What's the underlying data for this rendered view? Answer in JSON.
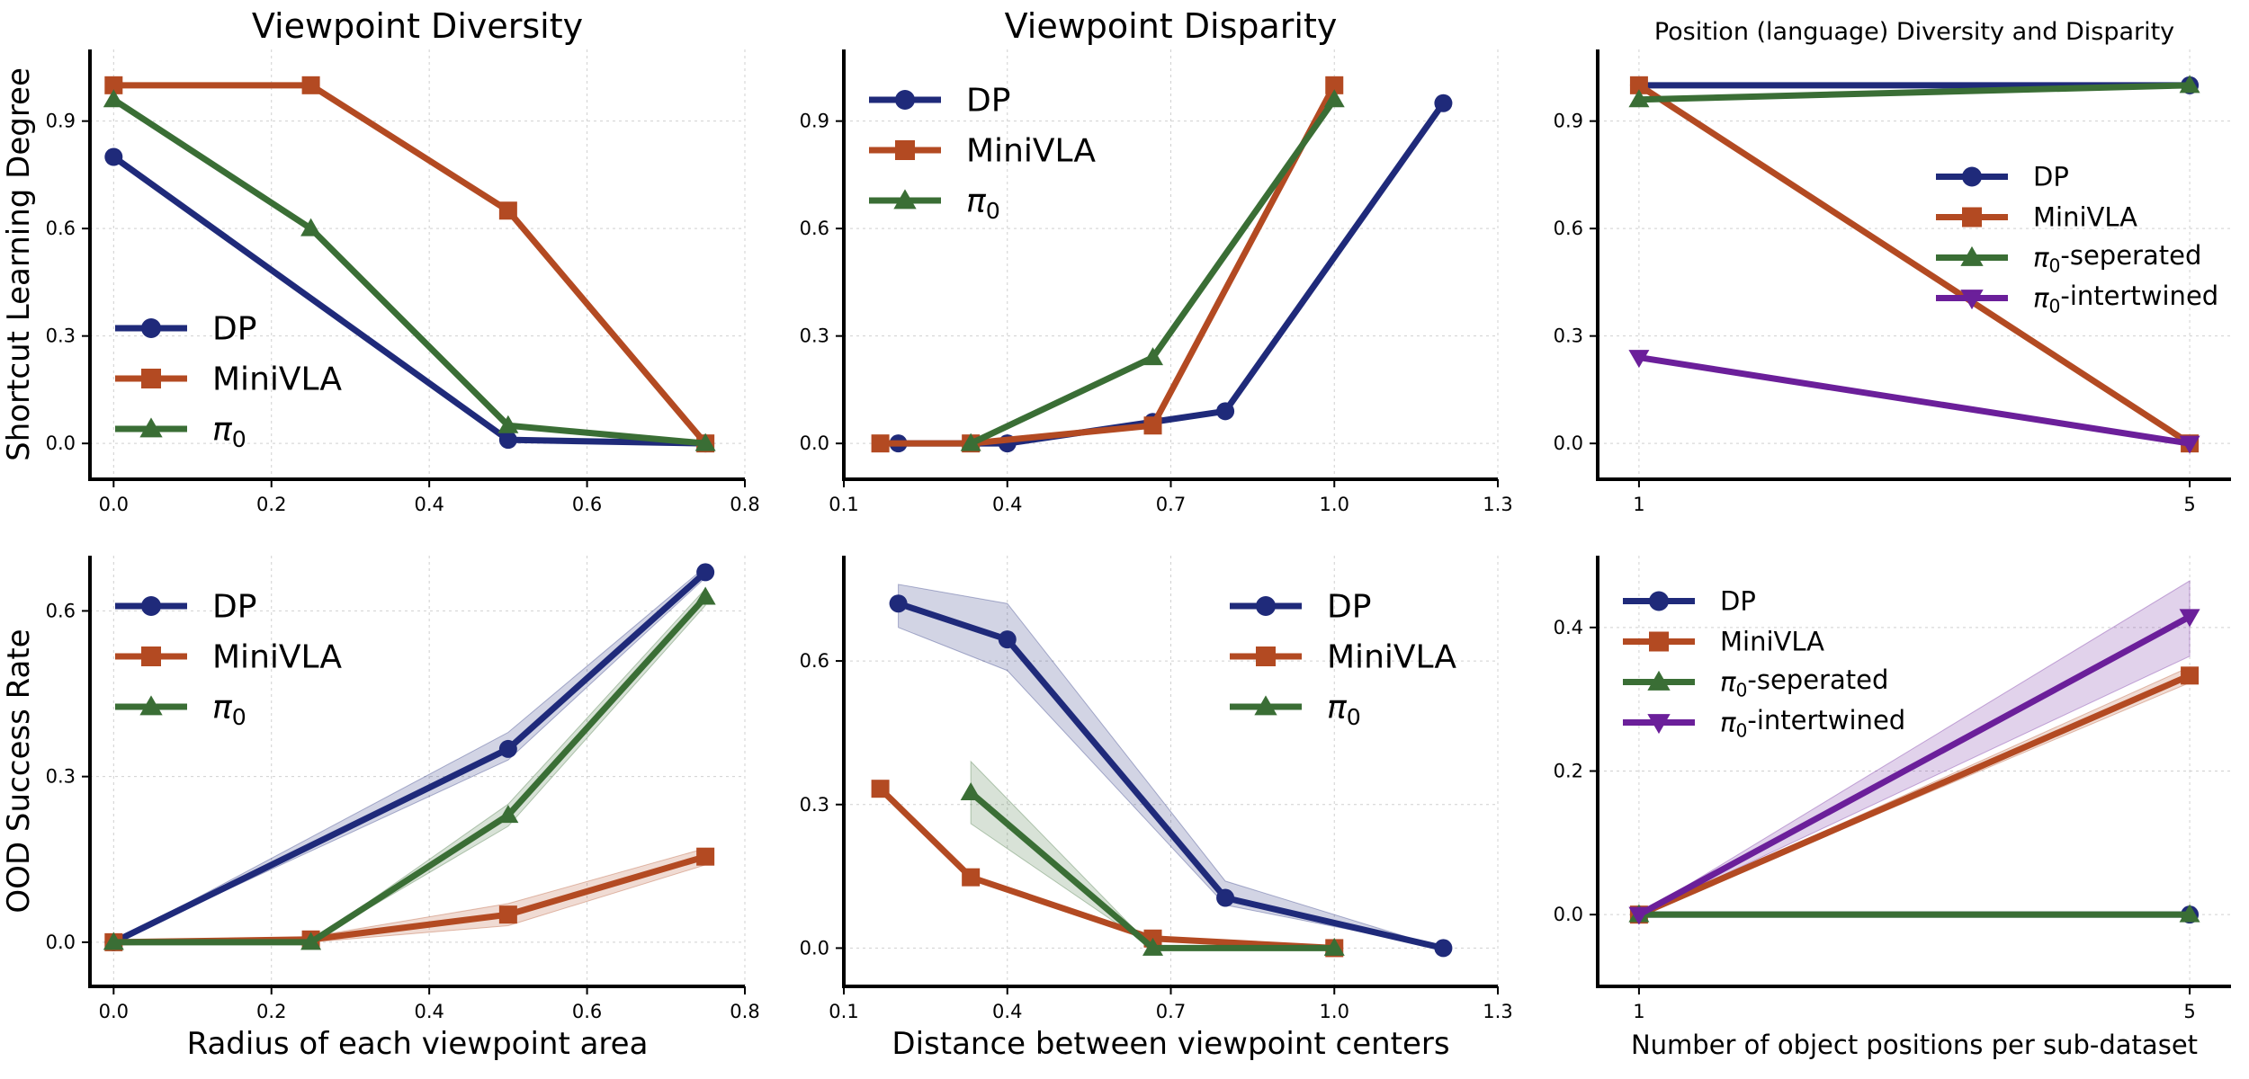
{
  "colors": {
    "DP": "#1f2a7a",
    "MiniVLA": "#b34a22",
    "pi0": "#3a6e35",
    "pi0_intertwined": "#6b1f9a",
    "grid": "#d0d0d0",
    "axis": "#000000"
  },
  "row_labels": [
    "Shortcut Learning Degree",
    "OOD Success Rate"
  ],
  "chart_data": [
    {
      "type": "line",
      "title": "Viewpoint Diversity",
      "xlabel": "",
      "ylabel": "Shortcut Learning Degree",
      "xlim": [
        -0.03,
        0.8
      ],
      "ylim": [
        -0.1,
        1.1
      ],
      "xticks": [
        0.0,
        0.2,
        0.4,
        0.6,
        0.8
      ],
      "xticklabels": [
        "0.0",
        "0.2",
        "0.4",
        "0.6",
        "0.8"
      ],
      "yticks": [
        0.0,
        0.3,
        0.6,
        0.9
      ],
      "yticklabels": [
        "0.0",
        "0.3",
        "0.6",
        "0.9"
      ],
      "legend": "lower-left",
      "series": [
        {
          "name": "DP",
          "color": "DP",
          "marker": "circle",
          "x": [
            0.0,
            0.5,
            0.75
          ],
          "y": [
            0.8,
            0.01,
            0.0
          ]
        },
        {
          "name": "MiniVLA",
          "color": "MiniVLA",
          "marker": "square",
          "x": [
            0.0,
            0.25,
            0.5,
            0.75
          ],
          "y": [
            1.0,
            1.0,
            0.65,
            0.0
          ]
        },
        {
          "name": "π0",
          "color": "pi0",
          "marker": "triangle",
          "x": [
            0.0,
            0.25,
            0.5,
            0.75
          ],
          "y": [
            0.96,
            0.6,
            0.05,
            0.0
          ]
        }
      ]
    },
    {
      "type": "line",
      "title": "Viewpoint Disparity",
      "xlabel": "",
      "ylabel": "",
      "xlim": [
        0.1,
        1.3
      ],
      "ylim": [
        -0.1,
        1.1
      ],
      "xticks": [
        0.1,
        0.4,
        0.7,
        1.0,
        1.3
      ],
      "xticklabels": [
        "0.1",
        "0.4",
        "0.7",
        "1.0",
        "1.3"
      ],
      "yticks": [
        0.0,
        0.3,
        0.6,
        0.9
      ],
      "yticklabels": [
        "0.0",
        "0.3",
        "0.6",
        "0.9"
      ],
      "legend": "upper-left",
      "series": [
        {
          "name": "DP",
          "color": "DP",
          "marker": "circle",
          "x": [
            0.2,
            0.4,
            0.667,
            0.8,
            1.2
          ],
          "y": [
            0.0,
            0.0,
            0.06,
            0.09,
            0.95
          ]
        },
        {
          "name": "MiniVLA",
          "color": "MiniVLA",
          "marker": "square",
          "x": [
            0.167,
            0.333,
            0.667,
            1.0
          ],
          "y": [
            0.0,
            0.0,
            0.05,
            1.0
          ]
        },
        {
          "name": "π0",
          "color": "pi0",
          "marker": "triangle",
          "x": [
            0.333,
            0.667,
            1.0
          ],
          "y": [
            0.0,
            0.24,
            0.96
          ]
        }
      ]
    },
    {
      "type": "line",
      "title": "Position (language) Diversity and Disparity",
      "xlabel": "",
      "ylabel": "",
      "xlim": [
        0.7,
        5.3
      ],
      "ylim": [
        -0.1,
        1.1
      ],
      "xticks": [
        1,
        5
      ],
      "xticklabels": [
        "1",
        "5"
      ],
      "yticks": [
        0.0,
        0.3,
        0.6,
        0.9
      ],
      "yticklabels": [
        "0.0",
        "0.3",
        "0.6",
        "0.9"
      ],
      "legend": "center-right",
      "series": [
        {
          "name": "DP",
          "color": "DP",
          "marker": "circle",
          "x": [
            1,
            5
          ],
          "y": [
            1.0,
            1.0
          ]
        },
        {
          "name": "MiniVLA",
          "color": "MiniVLA",
          "marker": "square",
          "x": [
            1,
            5
          ],
          "y": [
            1.0,
            0.0
          ]
        },
        {
          "name": "π0-seperated",
          "color": "pi0",
          "marker": "triangle",
          "x": [
            1,
            5
          ],
          "y": [
            0.96,
            1.0
          ]
        },
        {
          "name": "π0-intertwined",
          "color": "pi0_intertwined",
          "marker": "triangle-down",
          "x": [
            1,
            5
          ],
          "y": [
            0.24,
            0.0
          ]
        }
      ]
    },
    {
      "type": "line",
      "title": "",
      "xlabel": "Radius of each viewpoint area",
      "ylabel": "OOD Success Rate",
      "xlim": [
        -0.03,
        0.8
      ],
      "ylim": [
        -0.08,
        0.7
      ],
      "xticks": [
        0.0,
        0.2,
        0.4,
        0.6,
        0.8
      ],
      "xticklabels": [
        "0.0",
        "0.2",
        "0.4",
        "0.6",
        "0.8"
      ],
      "yticks": [
        0.0,
        0.3,
        0.6
      ],
      "yticklabels": [
        "0.0",
        "0.3",
        "0.6"
      ],
      "legend": "upper-left",
      "series": [
        {
          "name": "DP",
          "color": "DP",
          "marker": "circle",
          "x": [
            0.0,
            0.5,
            0.75
          ],
          "y": [
            0.0,
            0.35,
            0.67
          ],
          "lo": [
            0.0,
            0.33,
            0.66
          ],
          "hi": [
            0.0,
            0.38,
            0.68
          ]
        },
        {
          "name": "MiniVLA",
          "color": "MiniVLA",
          "marker": "square",
          "x": [
            0.0,
            0.25,
            0.5,
            0.75
          ],
          "y": [
            0.0,
            0.005,
            0.05,
            0.155
          ],
          "lo": [
            0.0,
            0.0,
            0.03,
            0.14
          ],
          "hi": [
            0.0,
            0.01,
            0.07,
            0.17
          ]
        },
        {
          "name": "π0",
          "color": "pi0",
          "marker": "triangle",
          "x": [
            0.0,
            0.25,
            0.5,
            0.75
          ],
          "y": [
            0.0,
            0.0,
            0.23,
            0.625
          ],
          "lo": [
            0.0,
            0.0,
            0.21,
            0.61
          ],
          "hi": [
            0.0,
            0.0,
            0.25,
            0.64
          ]
        }
      ]
    },
    {
      "type": "line",
      "title": "",
      "xlabel": "Distance between viewpoint centers",
      "ylabel": "",
      "xlim": [
        0.1,
        1.3
      ],
      "ylim": [
        -0.08,
        0.82
      ],
      "xticks": [
        0.1,
        0.4,
        0.7,
        1.0,
        1.3
      ],
      "xticklabels": [
        "0.1",
        "0.4",
        "0.7",
        "1.0",
        "1.3"
      ],
      "yticks": [
        0.0,
        0.3,
        0.6
      ],
      "yticklabels": [
        "0.0",
        "0.3",
        "0.6"
      ],
      "legend": "upper-right",
      "series": [
        {
          "name": "DP",
          "color": "DP",
          "marker": "circle",
          "x": [
            0.2,
            0.4,
            0.8,
            1.2
          ],
          "y": [
            0.72,
            0.645,
            0.105,
            0.0
          ],
          "lo": [
            0.67,
            0.58,
            0.09,
            0.0
          ],
          "hi": [
            0.76,
            0.72,
            0.14,
            0.0
          ]
        },
        {
          "name": "MiniVLA",
          "color": "MiniVLA",
          "marker": "square",
          "x": [
            0.167,
            0.333,
            0.667,
            1.0
          ],
          "y": [
            0.333,
            0.148,
            0.02,
            0.0
          ],
          "lo": [
            0.333,
            0.148,
            0.02,
            0.0
          ],
          "hi": [
            0.333,
            0.148,
            0.02,
            0.0
          ]
        },
        {
          "name": "π0",
          "color": "pi0",
          "marker": "triangle",
          "x": [
            0.333,
            0.667,
            1.0
          ],
          "y": [
            0.325,
            0.0,
            0.0
          ],
          "lo": [
            0.26,
            0.0,
            0.0
          ],
          "hi": [
            0.39,
            0.0,
            0.0
          ]
        }
      ]
    },
    {
      "type": "line",
      "title": "",
      "xlabel": "Number of object positions per sub-dataset",
      "ylabel": "",
      "xlim": [
        0.7,
        5.3
      ],
      "ylim": [
        -0.1,
        0.5
      ],
      "xticks": [
        1,
        5
      ],
      "xticklabels": [
        "1",
        "5"
      ],
      "yticks": [
        0.0,
        0.2,
        0.4
      ],
      "yticklabels": [
        "0.0",
        "0.2",
        "0.4"
      ],
      "legend": "upper-left",
      "series": [
        {
          "name": "DP",
          "color": "DP",
          "marker": "circle",
          "x": [
            1,
            5
          ],
          "y": [
            0.0,
            0.0
          ],
          "lo": [
            0.0,
            0.0
          ],
          "hi": [
            0.0,
            0.0
          ]
        },
        {
          "name": "MiniVLA",
          "color": "MiniVLA",
          "marker": "square",
          "x": [
            1,
            5
          ],
          "y": [
            0.0,
            0.333
          ],
          "lo": [
            0.0,
            0.323
          ],
          "hi": [
            0.0,
            0.345
          ]
        },
        {
          "name": "π0-seperated",
          "color": "pi0",
          "marker": "triangle",
          "x": [
            1,
            5
          ],
          "y": [
            0.0,
            0.0
          ],
          "lo": [
            0.0,
            0.0
          ],
          "hi": [
            0.0,
            0.0
          ]
        },
        {
          "name": "π0-intertwined",
          "color": "pi0_intertwined",
          "marker": "triangle-down",
          "x": [
            1,
            5
          ],
          "y": [
            0.0,
            0.415
          ],
          "lo": [
            0.0,
            0.36
          ],
          "hi": [
            0.0,
            0.465
          ]
        }
      ]
    }
  ]
}
